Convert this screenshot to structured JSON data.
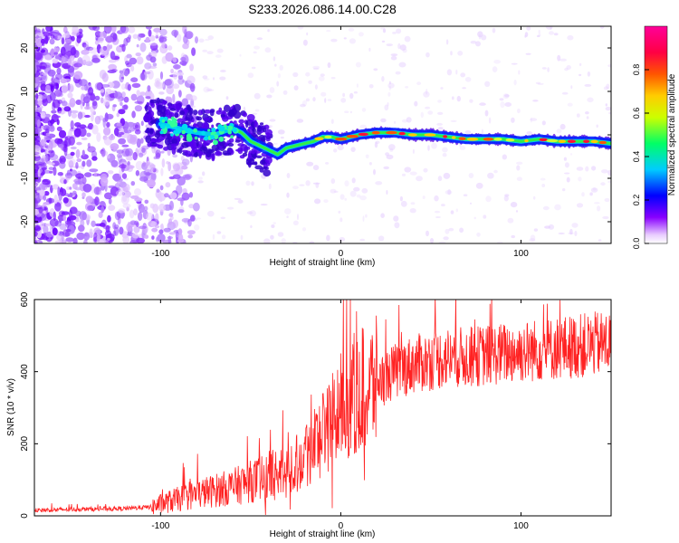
{
  "title": "S233.2026.086.14.00.C28",
  "chart_data": [
    {
      "type": "heatmap",
      "name": "spectrogram",
      "xlabel": "Height of straight line (km)",
      "ylabel": "Frequency (Hz)",
      "xlim": [
        -170,
        150
      ],
      "ylim": [
        -25,
        25
      ],
      "xticks": [
        -100,
        0,
        100
      ],
      "xtick_labels": [
        "-100",
        "0",
        "100"
      ],
      "yticks": [
        -20,
        -10,
        0,
        10,
        20
      ],
      "ytick_labels": [
        "-20",
        "-10",
        "0",
        "10",
        "20"
      ],
      "colorbar": {
        "label": "Normalized spectral amplitude",
        "range": [
          0,
          1
        ],
        "ticks": [
          0.0,
          0.2,
          0.4,
          0.6,
          0.8
        ],
        "tick_labels": [
          "0.0",
          "0.2",
          "0.4",
          "0.6",
          "0.8"
        ],
        "colors": [
          "#ffffff",
          "#8800ff",
          "#0000ff",
          "#00ccff",
          "#00ff66",
          "#ccff00",
          "#ffcc00",
          "#ff5500",
          "#ff0044",
          "#ff0099"
        ]
      },
      "ridge": {
        "x": [
          -100,
          -90,
          -80,
          -70,
          -60,
          -55,
          -50,
          -45,
          -40,
          -35,
          -30,
          -25,
          -20,
          -15,
          -10,
          -5,
          0,
          10,
          20,
          30,
          40,
          50,
          60,
          70,
          80,
          90,
          100,
          110,
          120,
          130,
          140,
          150
        ],
        "frequency": [
          2.5,
          1.5,
          0.5,
          0,
          1.5,
          0.5,
          -1.5,
          -2.5,
          -3.5,
          -4.5,
          -3,
          -2.5,
          -2,
          -1.5,
          -0.5,
          -0.5,
          -1,
          0,
          0.5,
          0.5,
          0,
          0,
          -0.5,
          -1,
          -1,
          -1,
          -1.5,
          -1,
          -1.5,
          -1.5,
          -1.5,
          -2
        ]
      }
    },
    {
      "type": "line",
      "name": "snr",
      "xlabel": "Height of straight line (km)",
      "ylabel": "SNR (10 * v/v)",
      "xlim": [
        -170,
        150
      ],
      "ylim": [
        0,
        600
      ],
      "xticks": [
        -100,
        0,
        100
      ],
      "xtick_labels": [
        "-100",
        "0",
        "100"
      ],
      "yticks": [
        0,
        200,
        400,
        600
      ],
      "ytick_labels": [
        "0",
        "200",
        "400",
        "600"
      ],
      "color": "#ff2222",
      "trend": {
        "x": [
          -170,
          -150,
          -120,
          -105,
          -95,
          -80,
          -60,
          -50,
          -40,
          -30,
          -20,
          -10,
          0,
          10,
          20,
          30,
          40,
          50,
          60,
          70,
          80,
          90,
          100,
          110,
          120,
          130,
          140,
          150
        ],
        "y": [
          15,
          18,
          20,
          25,
          40,
          60,
          80,
          95,
          110,
          125,
          170,
          230,
          300,
          350,
          370,
          400,
          420,
          430,
          440,
          440,
          445,
          450,
          455,
          460,
          465,
          470,
          475,
          480
        ]
      }
    }
  ]
}
